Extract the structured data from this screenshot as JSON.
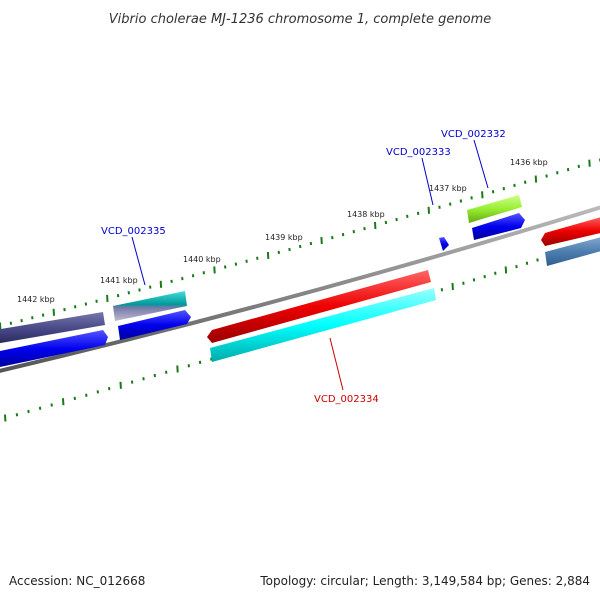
{
  "title": "Vibrio cholerae MJ-1236 chromosome 1, complete genome",
  "footer": {
    "accession": "Accession: NC_012668",
    "summary": "Topology: circular; Length: 3,149,584 bp; Genes: 2,884"
  },
  "ruler": {
    "labels": [
      "1442 kbp",
      "1441 kbp",
      "1440 kbp",
      "1439 kbp",
      "1438 kbp",
      "1437 kbp",
      "1436 kbp"
    ]
  },
  "genes": [
    {
      "name": "VCD_002332",
      "color": "#0000cc"
    },
    {
      "name": "VCD_002333",
      "color": "#0000cc"
    },
    {
      "name": "VCD_002335",
      "color": "#0000cc"
    },
    {
      "name": "VCD_002334",
      "color": "#cc0000"
    }
  ],
  "colors": {
    "backbone": "#888888",
    "tick": "#1a7a1a",
    "blue_feature": "#0000ee",
    "red_feature": "#ee0000",
    "cyan_feature": "#00ffff",
    "navy_feature": "#4a4a8a",
    "green_feature": "#99ee33",
    "steel_feature": "#4f7fb0"
  }
}
